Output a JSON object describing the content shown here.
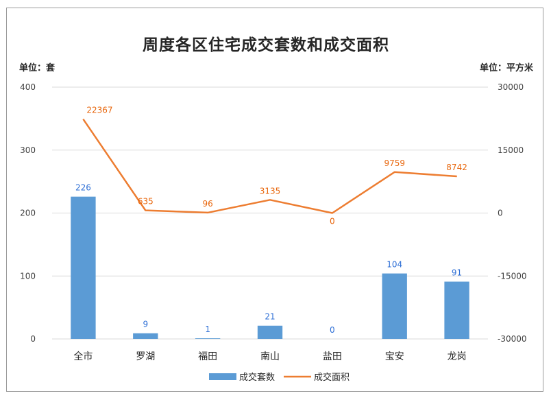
{
  "chart_data": {
    "type": "bar+line",
    "title": "周度各区住宅成交套数和成交面积",
    "left_unit": "单位：套",
    "right_unit": "单位：平方米",
    "categories": [
      "全市",
      "罗湖",
      "福田",
      "南山",
      "盐田",
      "宝安",
      "龙岗"
    ],
    "y_left": {
      "min": 0,
      "max": 400,
      "ticks": [
        "0",
        "100",
        "200",
        "300",
        "400"
      ],
      "values": [
        0,
        100,
        200,
        300,
        400
      ]
    },
    "y_right": {
      "min": -30000,
      "max": 30000,
      "ticks": [
        "-30000",
        "-15000",
        "0",
        "15000",
        "30000"
      ],
      "values": [
        -30000,
        -15000,
        0,
        15000,
        30000
      ]
    },
    "series": [
      {
        "name": "成交套数",
        "type": "bar",
        "axis": "left",
        "color": "#5b9bd5",
        "label_color": "#2e6fd6",
        "values": [
          226,
          9,
          1,
          21,
          0,
          104,
          91
        ]
      },
      {
        "name": "成交面积",
        "type": "line",
        "axis": "right",
        "color": "#ed7d31",
        "label_color": "#e8660c",
        "values": [
          22367,
          635,
          96,
          3135,
          0,
          9759,
          8742
        ]
      }
    ],
    "grid": true,
    "legend_position": "bottom"
  }
}
